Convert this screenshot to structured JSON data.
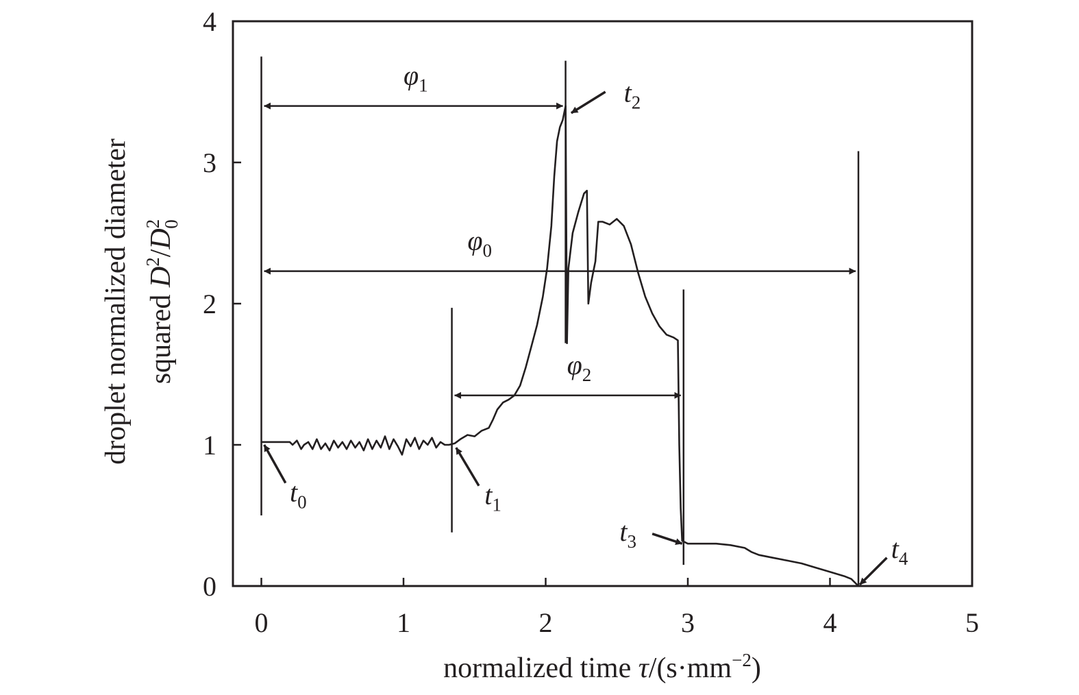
{
  "chart_data": {
    "type": "line",
    "xlabel": {
      "text": "normalized time ",
      "symbol": "τ",
      "unit_open": "/(s·mm",
      "unit_exp": "−2",
      "unit_close": ")"
    },
    "ylabel": {
      "line1": "droplet normalized diameter",
      "line2_prefix": "squared ",
      "sym_D": "D",
      "sq": "2",
      "slash": "/",
      "sym_D0": "D",
      "sub0": "0",
      "sq0": "2"
    },
    "xlim": [
      -0.2,
      5
    ],
    "ylim": [
      0,
      4
    ],
    "x_ticks": [
      0,
      1,
      2,
      3,
      4,
      5
    ],
    "y_ticks": [
      0,
      1,
      2,
      3,
      4
    ],
    "x_tick_labels": [
      "0",
      "1",
      "2",
      "3",
      "4",
      "5"
    ],
    "y_tick_labels": [
      "0",
      "1",
      "2",
      "3",
      "4"
    ],
    "grid": false,
    "line_color": "#231f20",
    "series": [
      {
        "points": [
          [
            0.0,
            1.02
          ],
          [
            0.1,
            1.02
          ],
          [
            0.2,
            1.02
          ],
          [
            0.22,
            1.0
          ],
          [
            0.25,
            1.03
          ],
          [
            0.28,
            0.97
          ],
          [
            0.3,
            1.0
          ],
          [
            0.33,
            1.02
          ],
          [
            0.36,
            0.97
          ],
          [
            0.39,
            1.04
          ],
          [
            0.42,
            0.97
          ],
          [
            0.45,
            1.01
          ],
          [
            0.48,
            0.96
          ],
          [
            0.51,
            1.03
          ],
          [
            0.54,
            0.98
          ],
          [
            0.57,
            1.02
          ],
          [
            0.6,
            0.97
          ],
          [
            0.63,
            1.03
          ],
          [
            0.66,
            0.98
          ],
          [
            0.69,
            1.02
          ],
          [
            0.72,
            0.96
          ],
          [
            0.75,
            1.04
          ],
          [
            0.78,
            0.97
          ],
          [
            0.81,
            1.03
          ],
          [
            0.84,
            0.98
          ],
          [
            0.87,
            1.06
          ],
          [
            0.9,
            0.97
          ],
          [
            0.93,
            1.04
          ],
          [
            0.96,
            0.99
          ],
          [
            0.99,
            0.93
          ],
          [
            1.02,
            1.04
          ],
          [
            1.05,
            0.99
          ],
          [
            1.08,
            1.05
          ],
          [
            1.11,
            0.97
          ],
          [
            1.14,
            1.03
          ],
          [
            1.17,
            1.0
          ],
          [
            1.2,
            1.05
          ],
          [
            1.23,
            0.98
          ],
          [
            1.26,
            1.02
          ],
          [
            1.29,
            1.0
          ],
          [
            1.32,
            1.0
          ],
          [
            1.36,
            1.01
          ],
          [
            1.4,
            1.04
          ],
          [
            1.45,
            1.07
          ],
          [
            1.5,
            1.06
          ],
          [
            1.55,
            1.1
          ],
          [
            1.6,
            1.12
          ],
          [
            1.63,
            1.18
          ],
          [
            1.66,
            1.25
          ],
          [
            1.7,
            1.3
          ],
          [
            1.74,
            1.32
          ],
          [
            1.78,
            1.35
          ],
          [
            1.82,
            1.42
          ],
          [
            1.86,
            1.55
          ],
          [
            1.9,
            1.7
          ],
          [
            1.94,
            1.85
          ],
          [
            1.98,
            2.05
          ],
          [
            2.01,
            2.25
          ],
          [
            2.04,
            2.55
          ],
          [
            2.06,
            2.9
          ],
          [
            2.08,
            3.15
          ],
          [
            2.1,
            3.25
          ],
          [
            2.12,
            3.3
          ],
          [
            2.14,
            3.4
          ],
          [
            2.15,
            1.72
          ],
          [
            2.16,
            2.25
          ],
          [
            2.19,
            2.5
          ],
          [
            2.23,
            2.65
          ],
          [
            2.27,
            2.78
          ],
          [
            2.29,
            2.8
          ],
          [
            2.3,
            2.0
          ],
          [
            2.32,
            2.15
          ],
          [
            2.35,
            2.3
          ],
          [
            2.37,
            2.58
          ],
          [
            2.4,
            2.58
          ],
          [
            2.45,
            2.56
          ],
          [
            2.5,
            2.6
          ],
          [
            2.55,
            2.55
          ],
          [
            2.6,
            2.42
          ],
          [
            2.65,
            2.22
          ],
          [
            2.7,
            2.05
          ],
          [
            2.75,
            1.93
          ],
          [
            2.8,
            1.84
          ],
          [
            2.85,
            1.78
          ],
          [
            2.9,
            1.76
          ],
          [
            2.93,
            1.74
          ],
          [
            2.94,
            1.0
          ],
          [
            2.95,
            0.55
          ],
          [
            2.96,
            0.32
          ],
          [
            3.0,
            0.3
          ],
          [
            3.1,
            0.3
          ],
          [
            3.2,
            0.3
          ],
          [
            3.3,
            0.29
          ],
          [
            3.4,
            0.27
          ],
          [
            3.45,
            0.24
          ],
          [
            3.5,
            0.22
          ],
          [
            3.6,
            0.2
          ],
          [
            3.7,
            0.18
          ],
          [
            3.8,
            0.16
          ],
          [
            3.9,
            0.13
          ],
          [
            4.0,
            0.1
          ],
          [
            4.1,
            0.07
          ],
          [
            4.15,
            0.05
          ],
          [
            4.2,
            0.0
          ]
        ]
      }
    ],
    "vertical_markers": [
      {
        "x": 0.0,
        "y_from": 0.5,
        "y_to": 3.75
      },
      {
        "x": 1.34,
        "y_from": 0.38,
        "y_to": 1.97
      },
      {
        "x": 2.14,
        "y_from": 1.72,
        "y_to": 3.72
      },
      {
        "x": 2.97,
        "y_from": 0.15,
        "y_to": 2.1
      },
      {
        "x": 4.2,
        "y_from": 0.0,
        "y_to": 3.08
      }
    ],
    "intervals": [
      {
        "sym": "φ",
        "sub": "1",
        "x0": 0.0,
        "x1": 2.14,
        "y": 3.4,
        "label_x": 1.0,
        "label_y": 3.55
      },
      {
        "sym": "φ",
        "sub": "0",
        "x0": 0.0,
        "x1": 4.2,
        "y": 2.23,
        "label_x": 1.45,
        "label_y": 2.38
      },
      {
        "sym": "φ",
        "sub": "2",
        "x0": 1.34,
        "x1": 2.97,
        "y": 1.35,
        "label_x": 2.15,
        "label_y": 1.5
      }
    ],
    "points_annotated": [
      {
        "sym": "t",
        "sub": "0",
        "x": 0.02,
        "y": 1.0,
        "label_x": 0.2,
        "label_y": 0.6,
        "arrow_from_x": 0.17,
        "arrow_from_y": 0.73
      },
      {
        "sym": "t",
        "sub": "1",
        "x": 1.37,
        "y": 0.98,
        "label_x": 1.57,
        "label_y": 0.58,
        "arrow_from_x": 1.53,
        "arrow_from_y": 0.71
      },
      {
        "sym": "t",
        "sub": "2",
        "x": 2.18,
        "y": 3.35,
        "label_x": 2.55,
        "label_y": 3.43,
        "arrow_from_x": 2.42,
        "arrow_from_y": 3.5
      },
      {
        "sym": "t",
        "sub": "3",
        "x": 2.96,
        "y": 0.3,
        "label_x": 2.52,
        "label_y": 0.32,
        "arrow_from_x": 2.75,
        "arrow_from_y": 0.37
      },
      {
        "sym": "t",
        "sub": "4",
        "x": 4.21,
        "y": 0.01,
        "label_x": 4.43,
        "label_y": 0.2,
        "arrow_from_x": 4.4,
        "arrow_from_y": 0.2
      }
    ]
  }
}
